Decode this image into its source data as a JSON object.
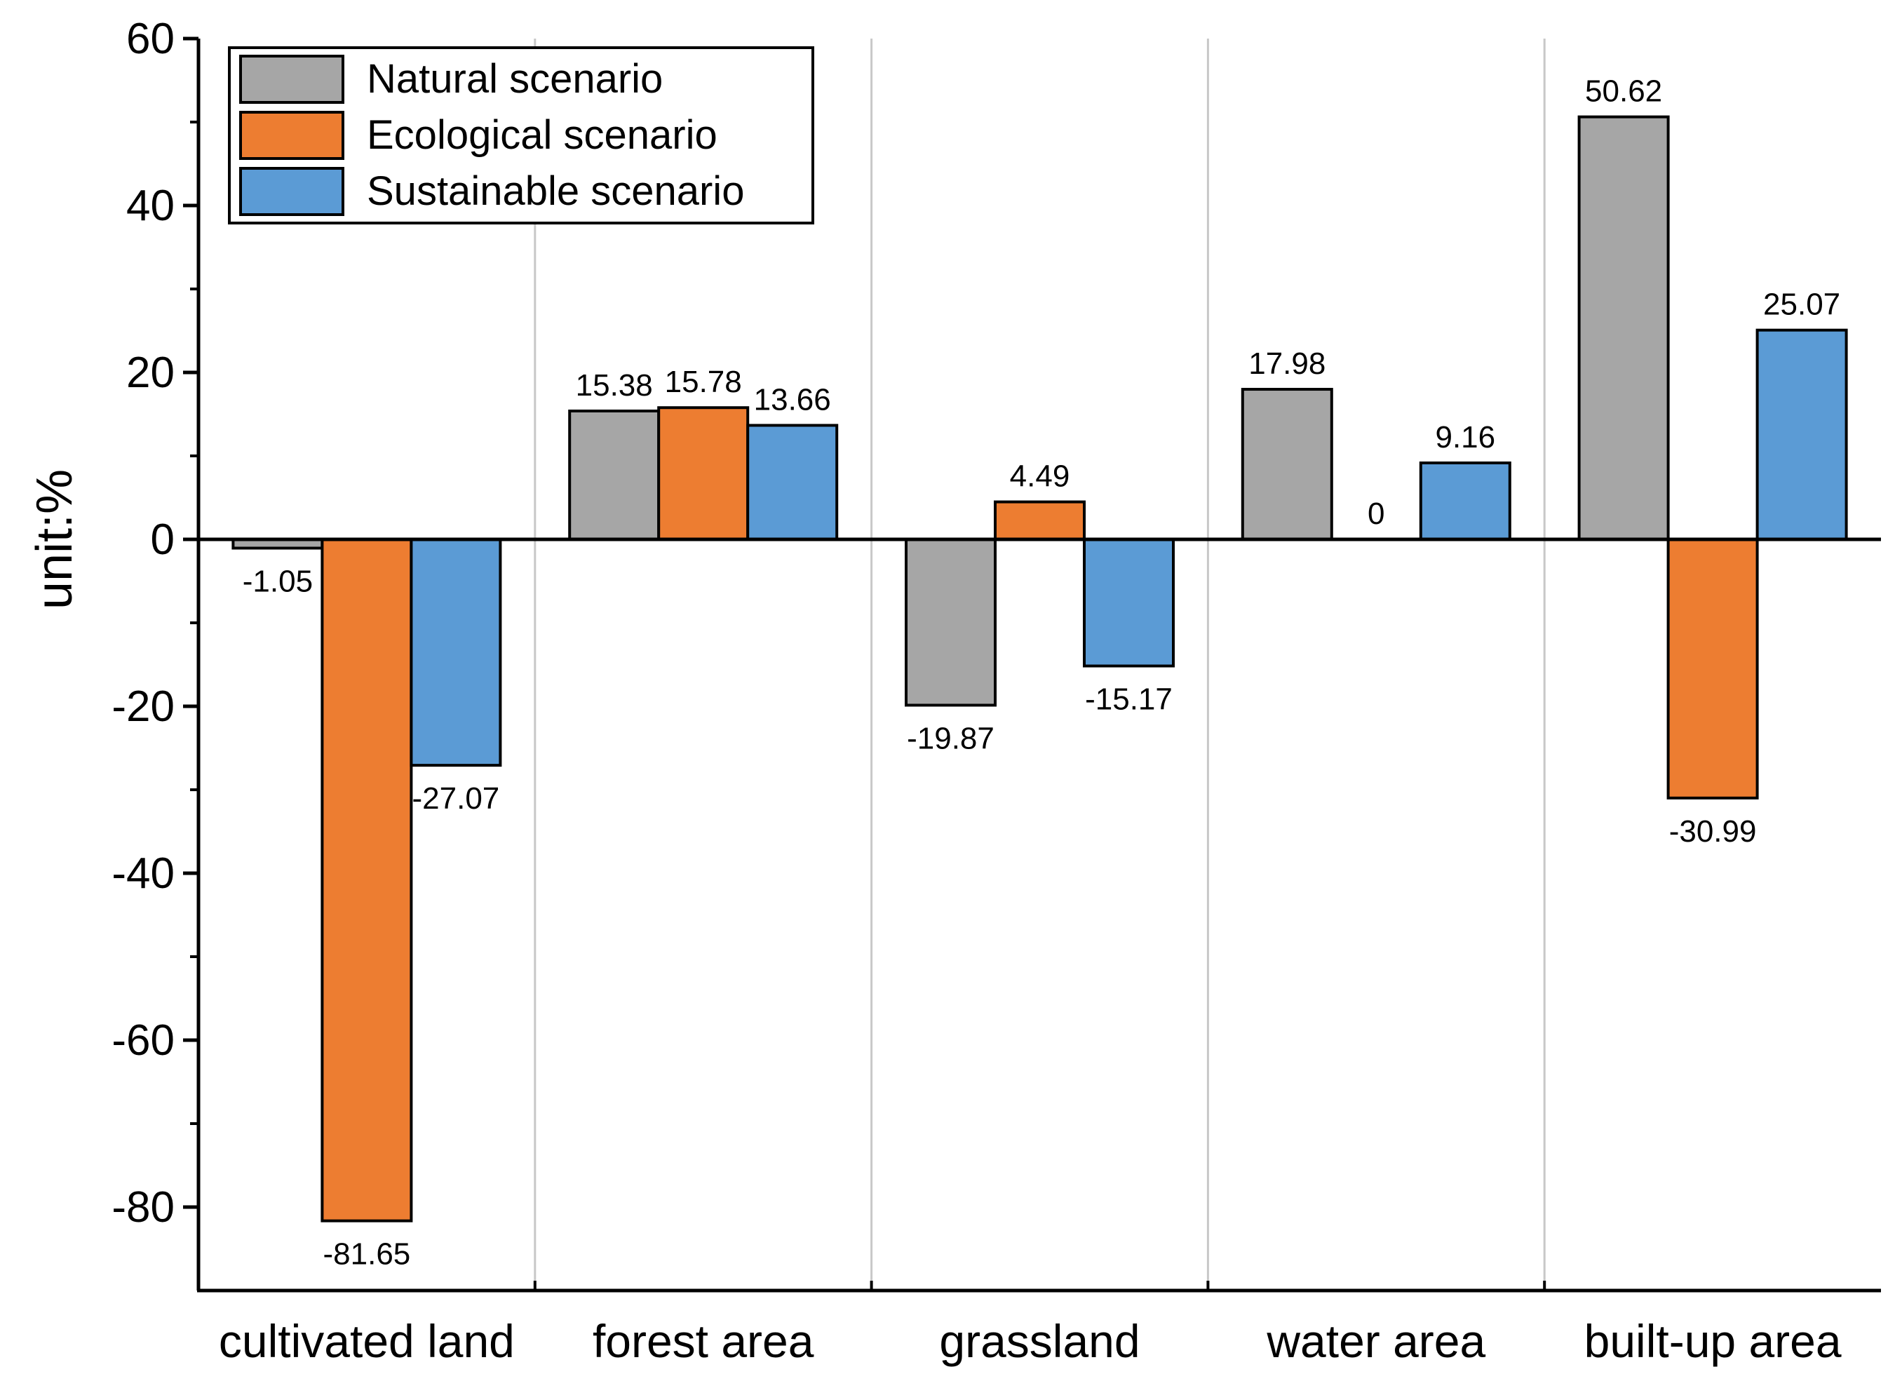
{
  "chart_data": {
    "type": "bar",
    "title": "",
    "xlabel": "",
    "ylabel": "unit:%",
    "ylim": [
      -90,
      60
    ],
    "yticks": [
      60,
      40,
      20,
      0,
      -20,
      -40,
      -60,
      -80
    ],
    "categories": [
      "cultivated land",
      "forest area",
      "grassland",
      "water area",
      "built-up area"
    ],
    "series": [
      {
        "name": "Natural scenario",
        "color": "#a6a6a6",
        "values": [
          -1.05,
          15.38,
          -19.87,
          17.98,
          50.62
        ],
        "labels": [
          "-1.05",
          "15.38",
          "-19.87",
          "17.98",
          "50.62"
        ]
      },
      {
        "name": "Ecological scenario",
        "color": "#ed7d31",
        "values": [
          -81.65,
          15.78,
          4.49,
          0,
          -30.99
        ],
        "labels": [
          "-81.65",
          "15.78",
          "4.49",
          "0",
          "-30.99"
        ]
      },
      {
        "name": "Sustainable scenario",
        "color": "#5b9bd5",
        "values": [
          -27.07,
          13.66,
          -15.17,
          9.16,
          25.07
        ],
        "labels": [
          "-27.07",
          "13.66",
          "-15.17",
          "9.16",
          "25.07"
        ]
      }
    ],
    "legend": "top-left",
    "grid": false
  }
}
